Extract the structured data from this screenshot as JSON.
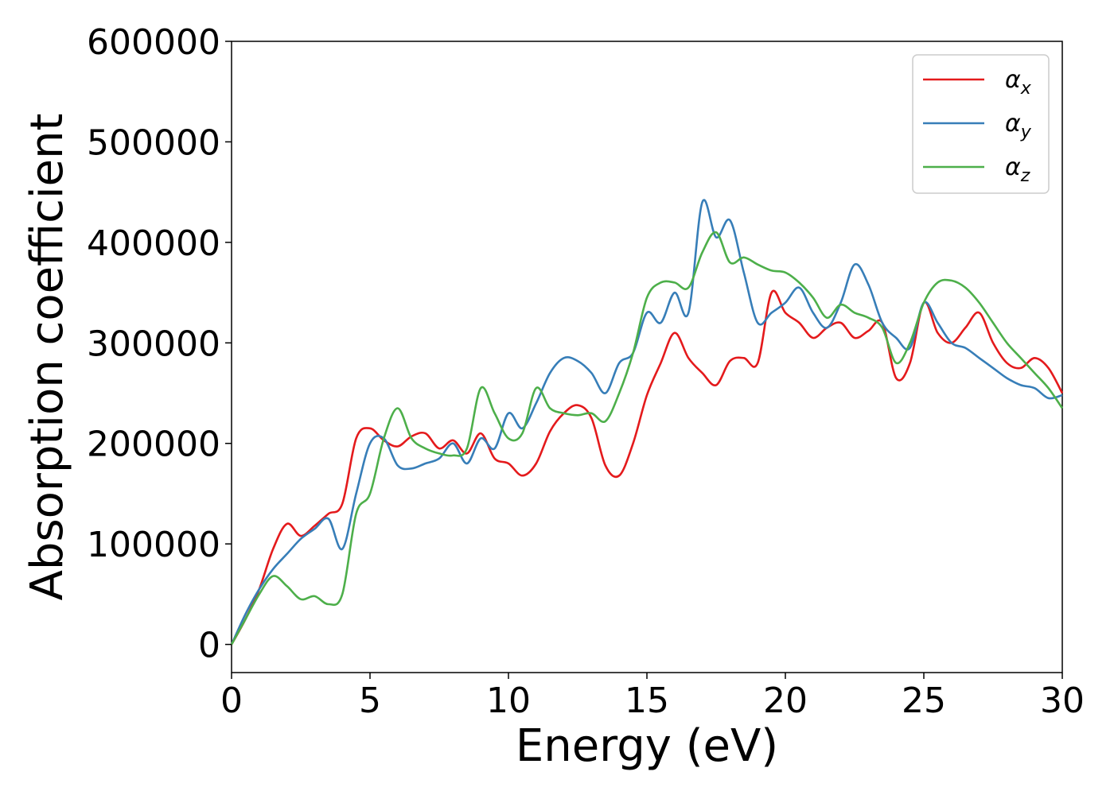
{
  "chart_data": {
    "type": "line",
    "xlabel": "Energy (eV)",
    "ylabel": "Absorption coefficient",
    "xlim": [
      0,
      30
    ],
    "ylim": [
      -28000,
      600000
    ],
    "xticks": [
      0,
      5,
      10,
      15,
      20,
      25,
      30
    ],
    "yticks": [
      0,
      100000,
      200000,
      300000,
      400000,
      500000,
      600000
    ],
    "grid": false,
    "legend_position": "top-right",
    "series": [
      {
        "name": "α",
        "subscript": "x",
        "color": "#e41a1c",
        "x": [
          0,
          0.5,
          1,
          1.5,
          2,
          2.5,
          3,
          3.5,
          4,
          4.5,
          5,
          5.5,
          6,
          6.5,
          7,
          7.5,
          8,
          8.5,
          9,
          9.5,
          10,
          10.5,
          11,
          11.5,
          12,
          12.5,
          13,
          13.5,
          14,
          14.5,
          15,
          15.5,
          16,
          16.5,
          17,
          17.5,
          18,
          18.5,
          19,
          19.5,
          20,
          20.5,
          21,
          21.5,
          22,
          22.5,
          23,
          23.5,
          24,
          24.5,
          25,
          25.5,
          26,
          26.5,
          27,
          27.5,
          28,
          28.5,
          29,
          29.5,
          30
        ],
        "y": [
          0,
          25000,
          55000,
          95000,
          120000,
          108000,
          118000,
          130000,
          140000,
          205000,
          215000,
          203000,
          197000,
          207000,
          210000,
          195000,
          203000,
          190000,
          210000,
          185000,
          180000,
          168000,
          180000,
          212000,
          230000,
          238000,
          225000,
          178000,
          168000,
          200000,
          248000,
          280000,
          310000,
          285000,
          270000,
          258000,
          282000,
          285000,
          280000,
          350000,
          330000,
          320000,
          305000,
          315000,
          320000,
          305000,
          312000,
          320000,
          265000,
          280000,
          340000,
          310000,
          300000,
          315000,
          330000,
          300000,
          280000,
          275000,
          285000,
          275000,
          250000
        ]
      },
      {
        "name": "α",
        "subscript": "y",
        "color": "#377eb8",
        "x": [
          0,
          0.5,
          1,
          1.5,
          2,
          2.5,
          3,
          3.5,
          4,
          4.5,
          5,
          5.5,
          6,
          6.5,
          7,
          7.5,
          8,
          8.5,
          9,
          9.5,
          10,
          10.5,
          11,
          11.5,
          12,
          12.5,
          13,
          13.5,
          14,
          14.5,
          15,
          15.5,
          16,
          16.5,
          17,
          17.5,
          18,
          18.5,
          19,
          19.5,
          20,
          20.5,
          21,
          21.5,
          22,
          22.5,
          23,
          23.5,
          24,
          24.5,
          25,
          25.5,
          26,
          26.5,
          27,
          27.5,
          28,
          28.5,
          29,
          29.5,
          30
        ],
        "y": [
          0,
          30000,
          55000,
          75000,
          90000,
          105000,
          115000,
          125000,
          95000,
          150000,
          200000,
          205000,
          178000,
          175000,
          180000,
          185000,
          200000,
          180000,
          205000,
          195000,
          230000,
          215000,
          240000,
          270000,
          285000,
          282000,
          270000,
          250000,
          280000,
          290000,
          330000,
          320000,
          350000,
          330000,
          440000,
          405000,
          422000,
          370000,
          320000,
          330000,
          340000,
          355000,
          330000,
          315000,
          340000,
          378000,
          358000,
          320000,
          305000,
          295000,
          340000,
          320000,
          300000,
          295000,
          285000,
          275000,
          265000,
          258000,
          255000,
          245000,
          248000
        ]
      },
      {
        "name": "α",
        "subscript": "z",
        "color": "#4daf4a",
        "x": [
          0,
          0.5,
          1,
          1.5,
          2,
          2.5,
          3,
          3.5,
          4,
          4.5,
          5,
          5.5,
          6,
          6.5,
          7,
          7.5,
          8,
          8.5,
          9,
          9.5,
          10,
          10.5,
          11,
          11.5,
          12,
          12.5,
          13,
          13.5,
          14,
          14.5,
          15,
          15.5,
          16,
          16.5,
          17,
          17.5,
          18,
          18.5,
          19,
          19.5,
          20,
          20.5,
          21,
          21.5,
          22,
          22.5,
          23,
          23.5,
          24,
          24.5,
          25,
          25.5,
          26,
          26.5,
          27,
          27.5,
          28,
          28.5,
          29,
          29.5,
          30
        ],
        "y": [
          0,
          25000,
          50000,
          68000,
          58000,
          45000,
          48000,
          40000,
          50000,
          130000,
          150000,
          205000,
          235000,
          205000,
          195000,
          190000,
          188000,
          195000,
          255000,
          230000,
          205000,
          210000,
          255000,
          235000,
          230000,
          228000,
          230000,
          222000,
          250000,
          290000,
          345000,
          360000,
          360000,
          355000,
          390000,
          410000,
          380000,
          385000,
          378000,
          372000,
          370000,
          360000,
          345000,
          325000,
          338000,
          330000,
          325000,
          315000,
          280000,
          300000,
          340000,
          360000,
          362000,
          355000,
          340000,
          320000,
          300000,
          285000,
          270000,
          255000,
          235000
        ]
      }
    ]
  }
}
